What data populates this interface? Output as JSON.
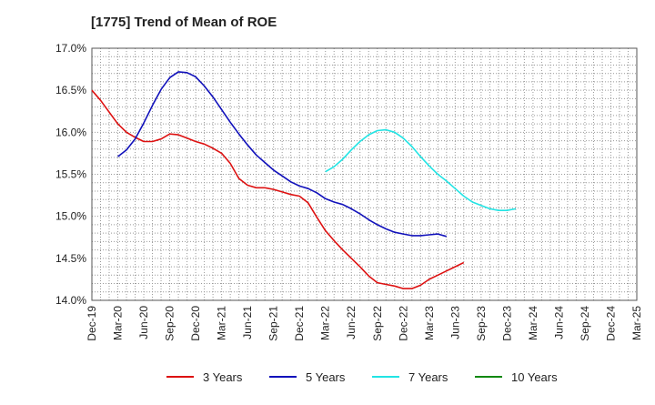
{
  "chart_data": {
    "type": "line",
    "title": "[1775]  Trend of Mean of ROE",
    "x_ticks": [
      "Dec-19",
      "Mar-20",
      "Jun-20",
      "Sep-20",
      "Dec-20",
      "Mar-21",
      "Jun-21",
      "Sep-21",
      "Dec-21",
      "Mar-22",
      "Jun-22",
      "Sep-22",
      "Dec-22",
      "Mar-23",
      "Jun-23",
      "Sep-23",
      "Dec-23",
      "Mar-24",
      "Jun-24",
      "Sep-24",
      "Dec-24",
      "Mar-25"
    ],
    "y_ticks": [
      "17.0%",
      "16.5%",
      "16.0%",
      "15.5%",
      "15.0%",
      "14.5%",
      "14.0%"
    ],
    "ylim": [
      14.0,
      17.0
    ],
    "grid": true,
    "legend_position": "bottom",
    "series": [
      {
        "name": "3 Years",
        "color": "#dd1111",
        "x_start": "Dec-19",
        "values": [
          16.5,
          16.38,
          16.24,
          16.1,
          16.0,
          15.94,
          15.89,
          15.89,
          15.92,
          15.98,
          15.97,
          15.93,
          15.89,
          15.86,
          15.81,
          15.75,
          15.63,
          15.45,
          15.37,
          15.34,
          15.34,
          15.32,
          15.29,
          15.26,
          15.24,
          15.16,
          14.99,
          14.83,
          14.71,
          14.6,
          14.5,
          14.4,
          14.29,
          14.21,
          14.19,
          14.17,
          14.14,
          14.14,
          14.18,
          14.25,
          14.3,
          14.35,
          14.4,
          14.45
        ]
      },
      {
        "name": "5 Years",
        "color": "#1111bb",
        "x_start": "Mar-20",
        "values": [
          15.71,
          15.79,
          15.92,
          16.11,
          16.32,
          16.51,
          16.65,
          16.72,
          16.71,
          16.66,
          16.55,
          16.42,
          16.27,
          16.12,
          15.98,
          15.85,
          15.73,
          15.64,
          15.55,
          15.48,
          15.41,
          15.36,
          15.33,
          15.28,
          15.21,
          15.17,
          15.14,
          15.09,
          15.03,
          14.96,
          14.9,
          14.85,
          14.81,
          14.79,
          14.77,
          14.77,
          14.78,
          14.79,
          14.76
        ]
      },
      {
        "name": "7 Years",
        "color": "#22e4e4",
        "x_start": "Mar-22",
        "values": [
          15.53,
          15.59,
          15.68,
          15.79,
          15.89,
          15.97,
          16.02,
          16.03,
          16.0,
          15.93,
          15.83,
          15.71,
          15.6,
          15.5,
          15.42,
          15.33,
          15.24,
          15.17,
          15.13,
          15.09,
          15.07,
          15.07,
          15.09
        ]
      },
      {
        "name": "10 Years",
        "color": "#118811",
        "x_start": "",
        "values": []
      }
    ]
  }
}
